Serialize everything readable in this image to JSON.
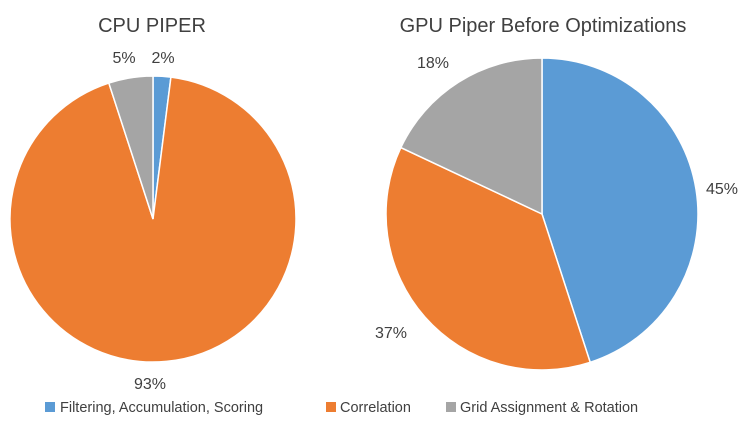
{
  "chart_data": [
    {
      "type": "pie",
      "title": "CPU PIPER",
      "categories": [
        "Filtering, Accumulation, Scoring",
        "Correlation",
        "Grid Assignment & Rotation"
      ],
      "values": [
        2,
        93,
        5
      ],
      "labels": [
        "2%",
        "93%",
        "5%"
      ],
      "colors": [
        "#5b9bd5",
        "#ed7d31",
        "#a5a5a5"
      ]
    },
    {
      "type": "pie",
      "title": "GPU Piper Before Optimizations",
      "categories": [
        "Filtering, Accumulation, Scoring",
        "Correlation",
        "Grid Assignment & Rotation"
      ],
      "values": [
        45,
        37,
        18
      ],
      "labels": [
        "45%",
        "37%",
        "18%"
      ],
      "colors": [
        "#5b9bd5",
        "#ed7d31",
        "#a5a5a5"
      ]
    }
  ],
  "legend": {
    "placement": "bottom",
    "items": [
      {
        "label": "Filtering, Accumulation, Scoring",
        "color": "#5b9bd5"
      },
      {
        "label": "Correlation",
        "color": "#ed7d31"
      },
      {
        "label": "Grid Assignment & Rotation",
        "color": "#a5a5a5"
      }
    ]
  }
}
